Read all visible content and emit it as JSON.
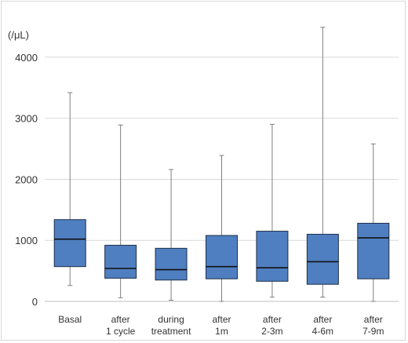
{
  "chart_data": {
    "type": "box",
    "unit_label": "(/μL)",
    "ylim": [
      0,
      4500
    ],
    "yticks": [
      0,
      1000,
      2000,
      3000,
      4000
    ],
    "grid": true,
    "colors": {
      "box_fill": "#4f7fc0",
      "box_edge": "#1f2f4a",
      "whisker": "#7f7f7f",
      "grid": "#d9d9d9"
    },
    "categories": [
      "Basal",
      "after 1 cycle",
      "during treatment",
      "after 1m",
      "after 2-3m",
      "after 4-6m",
      "after 7-9m"
    ],
    "series": [
      {
        "category": "Basal",
        "min": 260,
        "q1": 570,
        "median": 1020,
        "q3": 1340,
        "max": 3420
      },
      {
        "category": "after 1 cycle",
        "min": 60,
        "q1": 380,
        "median": 540,
        "q3": 920,
        "max": 2890
      },
      {
        "category": "during treatment",
        "min": 20,
        "q1": 350,
        "median": 520,
        "q3": 870,
        "max": 2160
      },
      {
        "category": "after 1m",
        "min": 0,
        "q1": 370,
        "median": 570,
        "q3": 1080,
        "max": 2390
      },
      {
        "category": "after 2-3m",
        "min": 70,
        "q1": 330,
        "median": 550,
        "q3": 1150,
        "max": 2900
      },
      {
        "category": "after 4-6m",
        "min": 70,
        "q1": 280,
        "median": 650,
        "q3": 1100,
        "max": 4490
      },
      {
        "category": "after 7-9m",
        "min": 0,
        "q1": 370,
        "median": 1040,
        "q3": 1280,
        "max": 2580
      }
    ]
  }
}
